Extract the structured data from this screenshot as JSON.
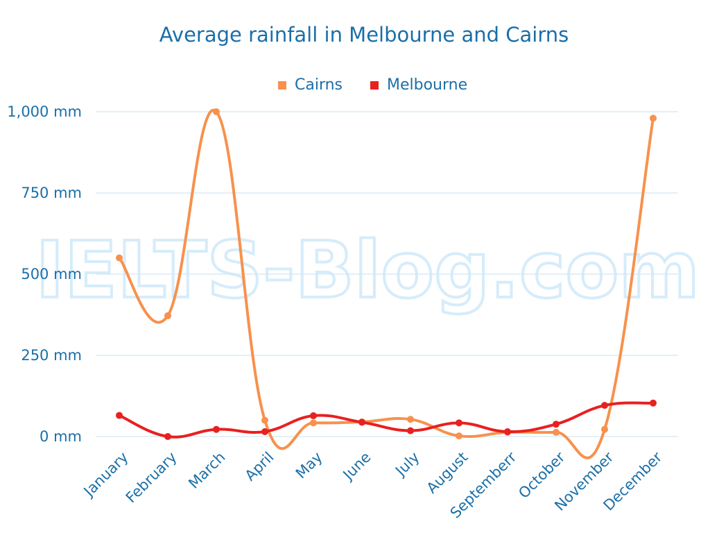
{
  "watermark": "IELTS-Blog.com",
  "chart_data": {
    "type": "line",
    "title": "Average rainfall in Melbourne and Cairns",
    "categories": [
      "January",
      "February",
      "March",
      "April",
      "May",
      "June",
      "July",
      "August",
      "Septemberr",
      "October",
      "November",
      "December"
    ],
    "yticks": [
      {
        "value": 0,
        "label": "0 mm"
      },
      {
        "value": 250,
        "label": "250 mm"
      },
      {
        "value": 500,
        "label": "500 mm"
      },
      {
        "value": 750,
        "label": "750 mm"
      },
      {
        "value": 1000,
        "label": "1,000 mm"
      }
    ],
    "ylim": [
      0,
      1000
    ],
    "grid": true,
    "legend_position": "top-center",
    "series": [
      {
        "name": "Cairns",
        "color": "#f7914d",
        "values": [
          550,
          372,
          1000,
          50,
          42,
          45,
          53,
          2,
          13,
          13,
          22,
          980
        ]
      },
      {
        "name": "Melbourne",
        "color": "#e8201f",
        "values": [
          65,
          0,
          22,
          15,
          64,
          44,
          18,
          42,
          15,
          38,
          96,
          103
        ]
      }
    ]
  }
}
